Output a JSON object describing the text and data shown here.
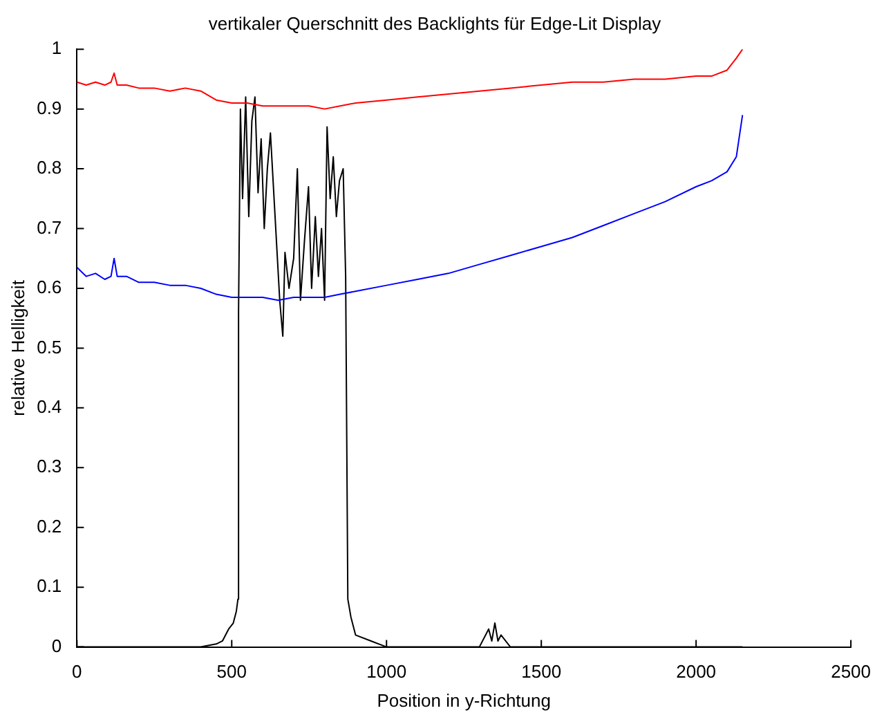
{
  "chart_data": {
    "type": "line",
    "title": "vertikaler Querschnitt des Backlights für Edge-Lit Display",
    "xlabel": "Position in y-Richtung",
    "ylabel": "relative Helligkeit",
    "xlim": [
      0,
      2500
    ],
    "xticks": [
      0,
      500,
      1000,
      1500,
      2000,
      2500
    ],
    "ylim": [
      0,
      1
    ],
    "yticks": [
      0,
      0.1,
      0.2,
      0.3,
      0.4,
      0.5,
      0.6,
      0.7,
      0.8,
      0.9,
      1
    ],
    "grid": false,
    "legend": false,
    "marker": "none",
    "series": [
      {
        "color": "#ff0000",
        "x": [
          0,
          30,
          60,
          90,
          110,
          120,
          130,
          160,
          200,
          250,
          300,
          350,
          400,
          450,
          500,
          550,
          600,
          650,
          700,
          750,
          800,
          850,
          900,
          1000,
          1100,
          1200,
          1300,
          1400,
          1500,
          1600,
          1700,
          1800,
          1900,
          2000,
          2050,
          2100,
          2130,
          2150
        ],
        "values": [
          0.945,
          0.94,
          0.945,
          0.94,
          0.945,
          0.96,
          0.94,
          0.94,
          0.935,
          0.935,
          0.93,
          0.935,
          0.93,
          0.915,
          0.91,
          0.91,
          0.905,
          0.905,
          0.905,
          0.905,
          0.9,
          0.905,
          0.91,
          0.915,
          0.92,
          0.925,
          0.93,
          0.935,
          0.94,
          0.945,
          0.945,
          0.95,
          0.95,
          0.955,
          0.955,
          0.965,
          0.985,
          1.0
        ]
      },
      {
        "color": "#0000ff",
        "x": [
          0,
          30,
          60,
          90,
          110,
          120,
          130,
          160,
          200,
          250,
          300,
          350,
          400,
          450,
          500,
          550,
          600,
          650,
          700,
          750,
          800,
          850,
          900,
          1000,
          1100,
          1200,
          1300,
          1400,
          1500,
          1600,
          1700,
          1800,
          1900,
          2000,
          2050,
          2100,
          2130,
          2150
        ],
        "values": [
          0.635,
          0.62,
          0.625,
          0.615,
          0.62,
          0.65,
          0.62,
          0.62,
          0.61,
          0.61,
          0.605,
          0.605,
          0.6,
          0.59,
          0.585,
          0.585,
          0.585,
          0.58,
          0.585,
          0.585,
          0.585,
          0.59,
          0.595,
          0.605,
          0.615,
          0.625,
          0.64,
          0.655,
          0.67,
          0.685,
          0.705,
          0.725,
          0.745,
          0.77,
          0.78,
          0.795,
          0.82,
          0.89
        ]
      },
      {
        "color": "#000000",
        "x": [
          0,
          100,
          200,
          300,
          400,
          450,
          470,
          490,
          505,
          515,
          520,
          522,
          528,
          535,
          545,
          555,
          565,
          575,
          585,
          595,
          605,
          615,
          625,
          640,
          655,
          665,
          672,
          685,
          700,
          712,
          722,
          735,
          748,
          758,
          770,
          780,
          790,
          800,
          808,
          818,
          828,
          838,
          848,
          860,
          868,
          875,
          885,
          900,
          950,
          1000,
          1200,
          1300,
          1330,
          1340,
          1350,
          1360,
          1370,
          1400,
          1500,
          2000,
          2150
        ],
        "values": [
          0,
          0,
          0,
          0,
          0,
          0.005,
          0.01,
          0.03,
          0.04,
          0.06,
          0.08,
          0.56,
          0.9,
          0.75,
          0.92,
          0.72,
          0.88,
          0.92,
          0.76,
          0.85,
          0.7,
          0.8,
          0.86,
          0.72,
          0.58,
          0.52,
          0.66,
          0.6,
          0.65,
          0.8,
          0.58,
          0.68,
          0.77,
          0.6,
          0.72,
          0.62,
          0.7,
          0.58,
          0.87,
          0.75,
          0.82,
          0.72,
          0.78,
          0.8,
          0.62,
          0.08,
          0.05,
          0.02,
          0.01,
          0,
          0,
          0,
          0.03,
          0.01,
          0.04,
          0.01,
          0.02,
          0,
          0,
          0,
          0
        ]
      }
    ]
  }
}
